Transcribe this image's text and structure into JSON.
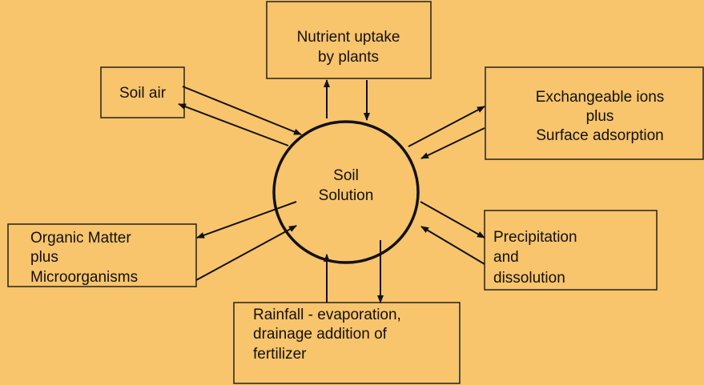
{
  "center": {
    "lines": [
      "Soil",
      "Solution"
    ]
  },
  "nodes": [
    {
      "lines": [
        "Soil air"
      ]
    },
    {
      "lines": [
        "Nutrient uptake",
        "by plants"
      ]
    },
    {
      "lines": [
        "Exchangeable ions",
        "plus",
        "Surface adsorption"
      ]
    },
    {
      "lines": [
        "Organic Matter",
        "plus",
        "Microorganisms"
      ]
    },
    {
      "lines": [
        "Precipitation",
        "and",
        "dissolution"
      ]
    },
    {
      "lines": [
        "Rainfall - evaporation,",
        "drainage addition of",
        "fertilizer"
      ]
    }
  ]
}
